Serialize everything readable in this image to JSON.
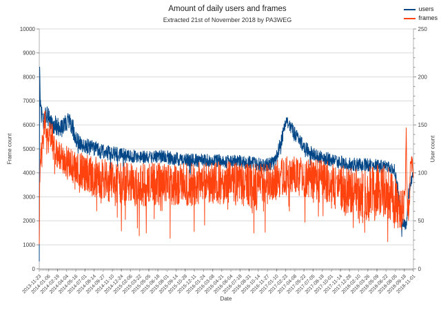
{
  "chart_data": {
    "type": "line",
    "title": "Amount of daily users and frames",
    "subtitle": "Extracted 21st of November 2018 by PA3WEG",
    "xlabel": "Date",
    "ylabel_left": "Frame count",
    "ylabel_right": "User count",
    "legend_position": "top-right",
    "grid": "horizontal",
    "colors": {
      "grid": "#d9d9d9",
      "axis": "#b0b0b0",
      "tick": "#8f8f8f",
      "text": "#3c3c3c"
    },
    "left_axis": {
      "min": 0,
      "max": 10000,
      "step": 1000,
      "ticks": [
        0,
        1000,
        2000,
        3000,
        4000,
        5000,
        6000,
        7000,
        8000,
        9000,
        10000
      ]
    },
    "right_axis": {
      "min": 0,
      "max": 250,
      "step": 50,
      "minor_step": 10,
      "ticks": [
        0,
        50,
        100,
        150,
        200,
        250
      ]
    },
    "total_days": 1804,
    "x_ticks": {
      "interval_days": 44,
      "minor_interval_days": 7,
      "labels": [
        "2013-11-23",
        "2014-01-06",
        "2014-02-19",
        "2014-04-04",
        "2014-05-16",
        "2014-07-01",
        "2014-08-14",
        "2014-09-27",
        "2014-11-10",
        "2014-12-24",
        "2015-02-06",
        "2015-03-22",
        "2015-05-05",
        "2015-06-18",
        "2015-08-01",
        "2015-09-14",
        "2015-10-28",
        "2015-12-11",
        "2016-01-24",
        "2016-03-08",
        "2016-04-21",
        "2016-06-04",
        "2016-07-18",
        "2016-08-31",
        "2016-10-14",
        "2016-11-27",
        "2017-01-10",
        "2017-02-23",
        "2017-04-08",
        "2017-05-22",
        "2017-07-05",
        "2017-08-18",
        "2017-10-01",
        "2017-11-14",
        "2017-12-28",
        "2018-02-10",
        "2018-03-26",
        "2018-05-09",
        "2018-06-22",
        "2018-08-05",
        "2018-09-18",
        "2018-11-01"
      ]
    },
    "gaps": [
      [
        381,
        383
      ],
      [
        534,
        536
      ],
      [
        1430,
        1433
      ],
      [
        1563,
        1566
      ],
      [
        1602,
        1604
      ]
    ],
    "series": [
      {
        "name": "users",
        "color": "#004586",
        "axis": "right",
        "seed": 20181121,
        "dip_prob": 0.02,
        "dip_scale": 2.0,
        "clip_min": 2,
        "keypoints": [
          [
            0,
            8,
            4
          ],
          [
            2,
            210,
            3
          ],
          [
            4,
            178,
            8
          ],
          [
            10,
            162,
            10
          ],
          [
            20,
            152,
            10
          ],
          [
            30,
            158,
            10
          ],
          [
            44,
            160,
            12
          ],
          [
            60,
            152,
            10
          ],
          [
            76,
            150,
            10
          ],
          [
            100,
            145,
            10
          ],
          [
            126,
            150,
            10
          ],
          [
            145,
            155,
            8
          ],
          [
            160,
            148,
            10
          ],
          [
            176,
            135,
            8
          ],
          [
            210,
            128,
            8
          ],
          [
            250,
            127,
            8
          ],
          [
            300,
            122,
            8
          ],
          [
            404,
            119,
            7
          ],
          [
            500,
            116,
            7
          ],
          [
            600,
            117,
            7
          ],
          [
            700,
            113,
            7
          ],
          [
            769,
            113,
            7
          ],
          [
            900,
            112,
            7
          ],
          [
            1000,
            111,
            7
          ],
          [
            1080,
            108,
            7
          ],
          [
            1135,
            111,
            7
          ],
          [
            1165,
            132,
            8
          ],
          [
            1190,
            154,
            6
          ],
          [
            1215,
            147,
            7
          ],
          [
            1240,
            138,
            7
          ],
          [
            1280,
            126,
            7
          ],
          [
            1330,
            118,
            7
          ],
          [
            1420,
            113,
            7
          ],
          [
            1500,
            109,
            7
          ],
          [
            1600,
            108,
            7
          ],
          [
            1680,
            106,
            7
          ],
          [
            1715,
            102,
            7
          ],
          [
            1730,
            80,
            8
          ],
          [
            1745,
            48,
            6
          ],
          [
            1770,
            45,
            5
          ],
          [
            1782,
            80,
            7
          ],
          [
            1795,
            95,
            5
          ],
          [
            1804,
            97,
            4
          ]
        ]
      },
      {
        "name": "frames",
        "color": "#ff420e",
        "axis": "left",
        "seed": 19741121,
        "dip_prob": 0.07,
        "dip_scale": 1.6,
        "clip_min": 150,
        "keypoints": [
          [
            0,
            800,
            300
          ],
          [
            2,
            3600,
            400
          ],
          [
            6,
            4700,
            400
          ],
          [
            14,
            5100,
            500
          ],
          [
            22,
            5600,
            700
          ],
          [
            27,
            6300,
            700
          ],
          [
            34,
            5400,
            600
          ],
          [
            44,
            5300,
            650
          ],
          [
            58,
            5600,
            700
          ],
          [
            70,
            5000,
            600
          ],
          [
            90,
            4700,
            650
          ],
          [
            126,
            4500,
            650
          ],
          [
            160,
            4300,
            700
          ],
          [
            200,
            4100,
            750
          ],
          [
            250,
            3900,
            850
          ],
          [
            320,
            3700,
            880
          ],
          [
            404,
            3550,
            900
          ],
          [
            500,
            3500,
            900
          ],
          [
            600,
            3600,
            900
          ],
          [
            700,
            3500,
            900
          ],
          [
            769,
            3550,
            900
          ],
          [
            900,
            3600,
            900
          ],
          [
            1000,
            3500,
            900
          ],
          [
            1100,
            3550,
            850
          ],
          [
            1160,
            3750,
            800
          ],
          [
            1200,
            4000,
            800
          ],
          [
            1260,
            3850,
            800
          ],
          [
            1350,
            3650,
            900
          ],
          [
            1440,
            3400,
            1000
          ],
          [
            1500,
            3150,
            1100
          ],
          [
            1560,
            3000,
            1150
          ],
          [
            1620,
            3250,
            1100
          ],
          [
            1681,
            3200,
            1100
          ],
          [
            1725,
            2750,
            950
          ],
          [
            1750,
            2450,
            800
          ],
          [
            1764,
            2900,
            500
          ],
          [
            1769,
            5850,
            80
          ],
          [
            1773,
            3100,
            400
          ],
          [
            1781,
            2100,
            550
          ],
          [
            1790,
            4200,
            500
          ],
          [
            1798,
            4550,
            250
          ],
          [
            1804,
            3700,
            150
          ]
        ]
      }
    ]
  }
}
